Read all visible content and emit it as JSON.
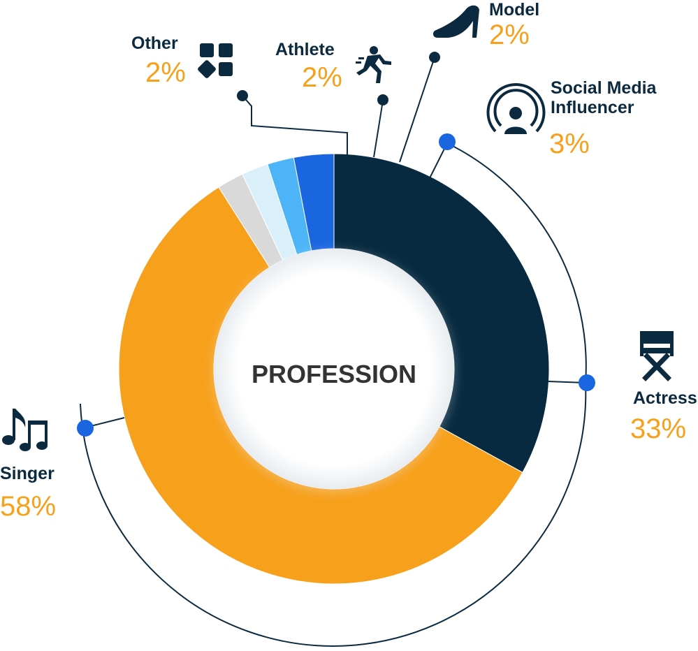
{
  "chart_data": {
    "type": "donut",
    "title": "PROFESSION",
    "start_angle_deg": 0,
    "slices": [
      {
        "label": "Actress",
        "value": 33,
        "display": "33%",
        "color": "#082a40",
        "icon": "directors-chair-icon"
      },
      {
        "label": "Singer",
        "value": 58,
        "display": "58%",
        "color": "#f7a01b",
        "icon": "music-notes-icon"
      },
      {
        "label": "Other",
        "value": 2,
        "display": "2%",
        "color": "#d9d9d9",
        "icon": "category-grid-icon"
      },
      {
        "label": "Athlete",
        "value": 2,
        "display": "2%",
        "color": "#d9f0fa",
        "icon": "running-person-icon"
      },
      {
        "label": "Model",
        "value": 2,
        "display": "2%",
        "color": "#4db5f7",
        "icon": "high-heel-icon"
      },
      {
        "label": "Social Media\nInfluencer",
        "value": 3,
        "display": "3%",
        "color": "#1a66e0",
        "icon": "influencer-broadcast-icon"
      }
    ],
    "colors": {
      "label_text": "#0b2a40",
      "percent_text": "#f7a01b",
      "leader_line": "#0b2a40",
      "leader_dot_dark": "#0b2a40",
      "leader_dot_blue": "#1a66e0"
    }
  }
}
